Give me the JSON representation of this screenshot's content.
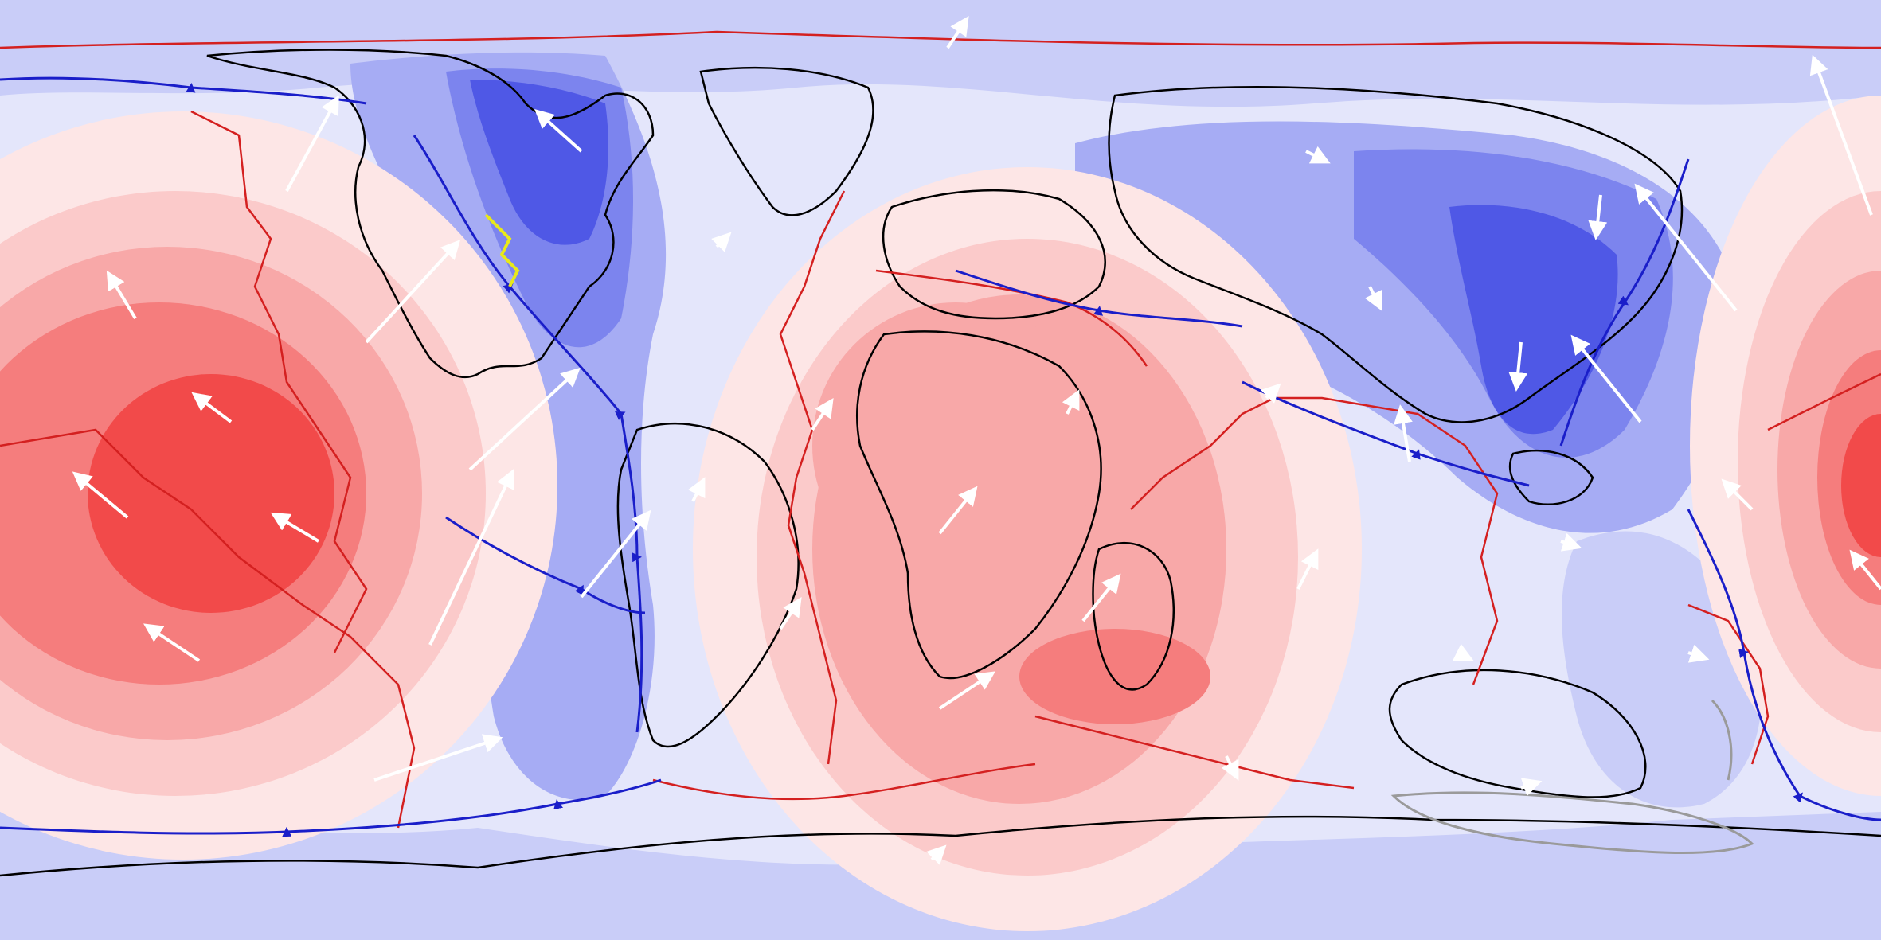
{
  "map": {
    "kind": "plate reconstruction with mantle flow field",
    "colors": {
      "ocean_background": "#e4e6fb",
      "upwelling_1": "#fde6e6",
      "upwelling_2": "#fbcaca",
      "upwelling_3": "#f8a8a8",
      "upwelling_4": "#f57d7d",
      "upwelling_5": "#f24a4a",
      "downwelling_1": "#c9cdf8",
      "downwelling_2": "#a6acf4",
      "downwelling_3": "#7c84ee",
      "downwelling_4": "#4f58e6",
      "plate_boundary": "#d42020",
      "subduction_zone": "#1a1ec9",
      "highlight_boundary": "#e8e81a",
      "coastline": "#000000",
      "velocity_vector": "#ffffff",
      "grey_outline": "#9a9a9a"
    },
    "legend_visible": false,
    "title_visible": false
  }
}
